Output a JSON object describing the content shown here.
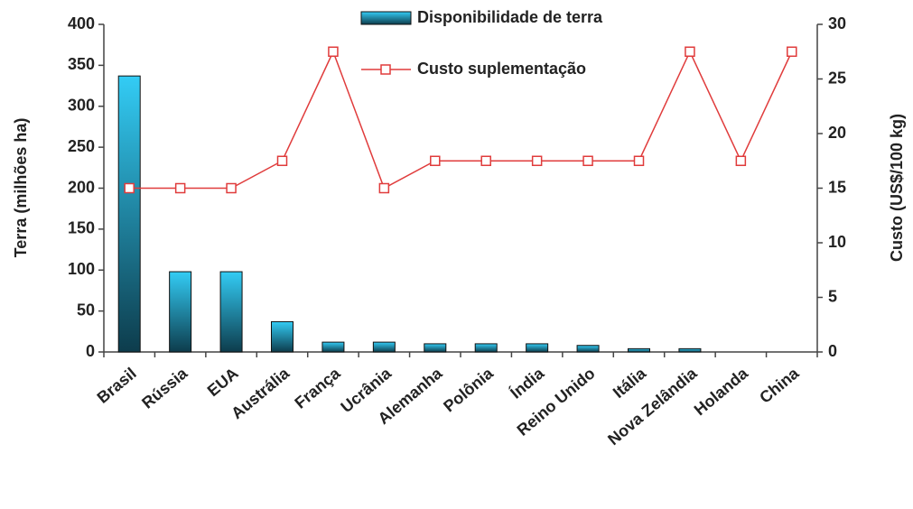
{
  "chart_data": {
    "type": "bar",
    "categories": [
      "Brasil",
      "Rússia",
      "EUA",
      "Austrália",
      "França",
      "Ucrânia",
      "Alemanha",
      "Polônia",
      "Índia",
      "Reino Unido",
      "Itália",
      "Nova Zelândia",
      "Holanda",
      "China"
    ],
    "series": [
      {
        "name": "Disponibilidade de terra",
        "type": "bar",
        "color": "#33ccf5",
        "values": [
          337,
          98,
          98,
          37,
          12,
          12,
          10,
          10,
          10,
          8,
          4,
          4,
          0,
          0
        ]
      },
      {
        "name": "Custo suplementação",
        "type": "line",
        "axis": "y2",
        "color": "#e03c3c",
        "values": [
          15,
          15,
          15,
          17.5,
          27.5,
          15,
          17.5,
          17.5,
          17.5,
          17.5,
          17.5,
          27.5,
          17.5,
          27.5
        ]
      }
    ],
    "ylabel": "Terra (milhões ha)",
    "y2label": "Custo (US$/100 kg)",
    "ylim": [
      0,
      400
    ],
    "yticks": [
      0,
      50,
      100,
      150,
      200,
      250,
      300,
      350,
      400
    ],
    "y2lim": [
      0,
      30
    ],
    "y2ticks": [
      0,
      5,
      10,
      15,
      20,
      25,
      30
    ],
    "grid": false,
    "legend": "top"
  }
}
